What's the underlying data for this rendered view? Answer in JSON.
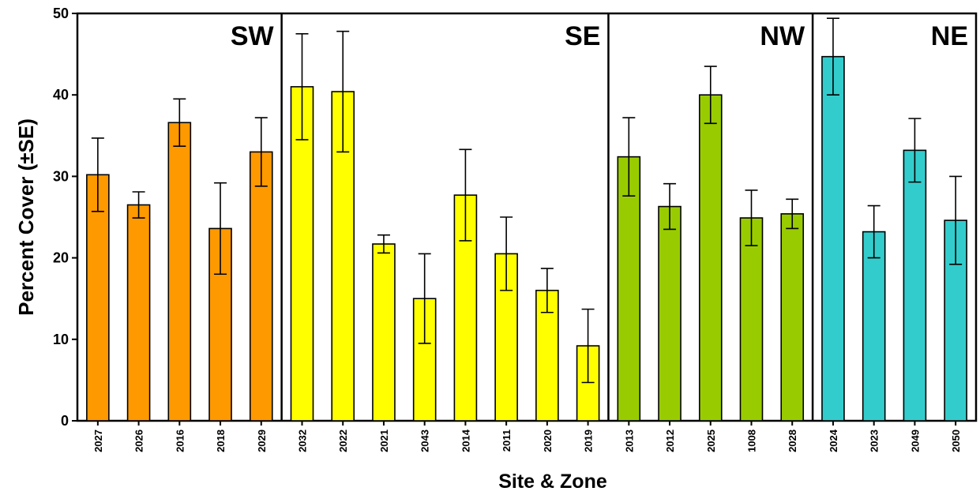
{
  "chart_data": {
    "type": "bar",
    "xlabel": "Site & Zone",
    "ylabel": "Percent Cover (±SE)",
    "ylim": [
      0,
      50
    ],
    "yticks": [
      0,
      10,
      20,
      30,
      40,
      50
    ],
    "grid": false,
    "groups": [
      {
        "name": "SW",
        "color": "#FF9900",
        "categories": [
          "2027",
          "2026",
          "2016",
          "2018",
          "2029"
        ],
        "values": [
          30.2,
          26.5,
          36.6,
          23.6,
          33.0
        ],
        "errors": [
          4.5,
          1.6,
          2.9,
          5.6,
          4.2
        ]
      },
      {
        "name": "SE",
        "color": "#FFFF00",
        "categories": [
          "2032",
          "2022",
          "2021",
          "2043",
          "2014",
          "2011",
          "2020",
          "2019"
        ],
        "values": [
          41.0,
          40.4,
          21.7,
          15.0,
          27.7,
          20.5,
          16.0,
          9.2
        ],
        "errors": [
          6.5,
          7.4,
          1.1,
          5.5,
          5.6,
          4.5,
          2.7,
          4.5
        ]
      },
      {
        "name": "NW",
        "color": "#99CC00",
        "categories": [
          "2013",
          "2012",
          "2025",
          "1008",
          "2028"
        ],
        "values": [
          32.4,
          26.3,
          40.0,
          24.9,
          25.4
        ],
        "errors": [
          4.8,
          2.8,
          3.5,
          3.4,
          1.8
        ]
      },
      {
        "name": "NE",
        "color": "#33CCCC",
        "categories": [
          "2024",
          "2023",
          "2049",
          "2050"
        ],
        "values": [
          44.7,
          23.2,
          33.2,
          24.6
        ],
        "errors": [
          4.7,
          3.2,
          3.9,
          5.4
        ]
      }
    ]
  }
}
